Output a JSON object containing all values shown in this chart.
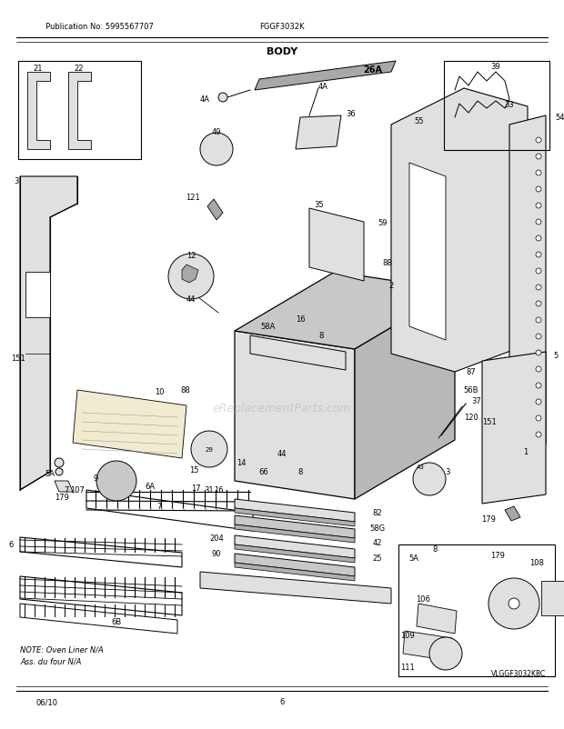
{
  "title": "BODY",
  "pub_no": "Publication No: 5995567707",
  "model": "FGGF3032K",
  "date": "06/10",
  "page": "6",
  "watermark": "eReplacementParts.com",
  "bottom_note": "NOTE: Oven Liner N/A\nAss. du four N/A",
  "bottom_model": "VLGGF3032KBC",
  "bg_color": "#ffffff",
  "text_color": "#000000",
  "gray1": "#c8c8c8",
  "gray2": "#e0e0e0",
  "gray3": "#a8a8a8",
  "fig_w": 6.2,
  "fig_h": 8.03,
  "dpi": 100
}
